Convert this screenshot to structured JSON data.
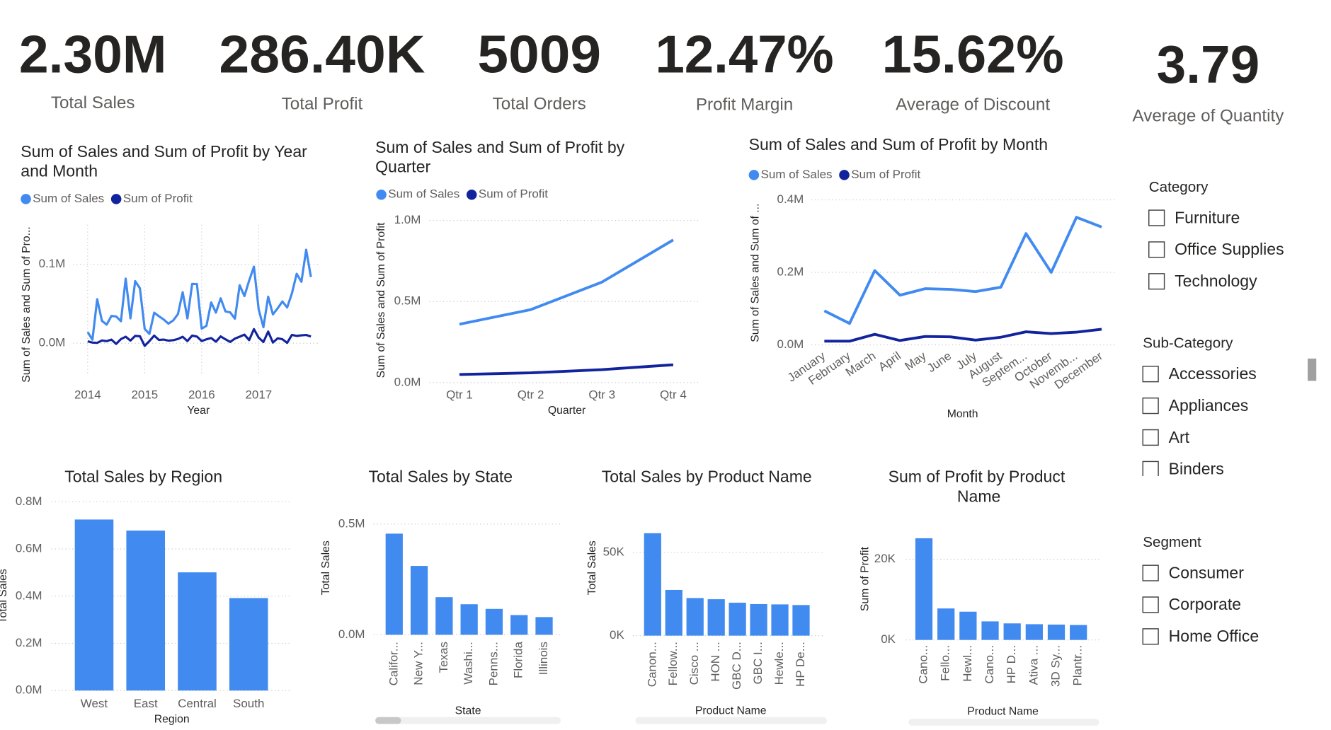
{
  "kpis": [
    {
      "value": "2.30M",
      "label": "Total Sales"
    },
    {
      "value": "286.40K",
      "label": "Total Profit"
    },
    {
      "value": "5009",
      "label": "Total Orders"
    },
    {
      "value": "12.47%",
      "label": "Profit  Margin"
    },
    {
      "value": "15.62%",
      "label": "Average of Discount"
    },
    {
      "value": "3.79",
      "label": "Average of Quantity"
    }
  ],
  "chart_data": [
    {
      "type": "line",
      "title": "Sum of Sales and Sum of Profit by Year and Month",
      "x_label": "Year",
      "y_label": "Sum of Sales and Sum of Pro...",
      "categories": [
        "2014",
        null,
        null,
        null,
        null,
        null,
        null,
        null,
        null,
        null,
        null,
        null,
        "2015",
        null,
        null,
        null,
        null,
        null,
        null,
        null,
        null,
        null,
        null,
        null,
        "2016",
        null,
        null,
        null,
        null,
        null,
        null,
        null,
        null,
        null,
        null,
        null,
        "2017",
        null,
        null,
        null,
        null,
        null,
        null,
        null,
        null,
        null,
        null,
        null
      ],
      "series": [
        {
          "name": "Sum of Sales",
          "color": "#418af0",
          "values": [
            0.0142,
            0.0045,
            0.0557,
            0.0283,
            0.0236,
            0.0346,
            0.0339,
            0.0279,
            0.0818,
            0.0315,
            0.0786,
            0.0695,
            0.0182,
            0.0119,
            0.0387,
            0.0342,
            0.0301,
            0.0248,
            0.0288,
            0.0369,
            0.0646,
            0.0314,
            0.0752,
            0.0749,
            0.0185,
            0.022,
            0.0517,
            0.0388,
            0.0569,
            0.0403,
            0.0391,
            0.0311,
            0.0734,
            0.0597,
            0.0794,
            0.0969,
            0.043,
            0.0203,
            0.0589,
            0.0365,
            0.0443,
            0.0529,
            0.0453,
            0.0631,
            0.0879,
            0.0778,
            0.1184,
            0.0838
          ]
        },
        {
          "name": "Sum of Profit",
          "color": "#12239e",
          "values": [
            0.0024,
            0.0009,
            0.0005,
            0.0035,
            0.0027,
            0.0046,
            -0.0008,
            0.0053,
            0.0083,
            0.0034,
            0.0093,
            0.0089,
            -0.0033,
            0.0028,
            0.0097,
            0.0042,
            0.0047,
            0.0033,
            0.0039,
            0.0054,
            0.0082,
            0.0028,
            0.0097,
            0.0085,
            0.0028,
            0.005,
            0.0066,
            0.002,
            0.0087,
            0.005,
            0.0017,
            0.0059,
            0.0083,
            0.0109,
            0.004,
            0.0179,
            0.0071,
            0.0016,
            0.0148,
            0.0009,
            0.0063,
            0.0051,
            0.0005,
            0.0106,
            0.0093,
            0.01,
            0.0105,
            0.0085
          ]
        }
      ],
      "ylim": [
        -0.04,
        0.15
      ],
      "yticks": [
        {
          "value": 0,
          "label": "0.0M"
        },
        {
          "value": 0.1,
          "label": "0.1M"
        }
      ],
      "grid": true,
      "xgrid": true
    },
    {
      "type": "line",
      "title": "Sum of Sales and Sum of Profit by Quarter",
      "x_label": "Quarter",
      "y_label": "Sum of Sales and Sum of Profit",
      "categories": [
        "Qtr 1",
        "Qtr 2",
        "Qtr 3",
        "Qtr 4"
      ],
      "series": [
        {
          "name": "Sum of Sales",
          "color": "#418af0",
          "values": [
            0.36,
            0.45,
            0.62,
            0.88
          ]
        },
        {
          "name": "Sum of Profit",
          "color": "#12239e",
          "values": [
            0.05,
            0.06,
            0.08,
            0.11
          ]
        }
      ],
      "ylim": [
        0,
        1.0
      ],
      "yticks": [
        {
          "value": 0,
          "label": "0.0M"
        },
        {
          "value": 0.5,
          "label": "0.5M"
        },
        {
          "value": 1.0,
          "label": "1.0M"
        }
      ],
      "grid": true
    },
    {
      "type": "line",
      "title": "Sum of Sales and Sum of Profit by Month",
      "x_label": "Month",
      "y_label": "Sum of Sales and Sum of ...",
      "categories": [
        "January",
        "February",
        "March",
        "April",
        "May",
        "June",
        "July",
        "August",
        "Septem...",
        "October",
        "Novemb...",
        "December"
      ],
      "series": [
        {
          "name": "Sum of Sales",
          "color": "#418af0",
          "values": [
            0.094,
            0.059,
            0.205,
            0.137,
            0.155,
            0.153,
            0.147,
            0.159,
            0.307,
            0.2,
            0.352,
            0.325
          ]
        },
        {
          "name": "Sum of Profit",
          "color": "#12239e",
          "values": [
            0.01,
            0.01,
            0.029,
            0.012,
            0.023,
            0.022,
            0.013,
            0.021,
            0.036,
            0.031,
            0.035,
            0.043
          ]
        }
      ],
      "ylim": [
        0,
        0.4
      ],
      "yticks": [
        {
          "value": 0,
          "label": "0.0M"
        },
        {
          "value": 0.2,
          "label": "0.2M"
        },
        {
          "value": 0.4,
          "label": "0.4M"
        }
      ],
      "grid": true
    },
    {
      "type": "bar",
      "title": "Total Sales by Region",
      "x_label": "Region",
      "y_label": "Total Sales",
      "categories": [
        "West",
        "East",
        "Central",
        "South"
      ],
      "values": [
        0.725,
        0.678,
        0.501,
        0.392
      ],
      "color": "#418af0",
      "ylim": [
        0,
        0.8
      ],
      "yticks": [
        {
          "value": 0,
          "label": "0.0M"
        },
        {
          "value": 0.2,
          "label": "0.2M"
        },
        {
          "value": 0.4,
          "label": "0.4M"
        },
        {
          "value": 0.6,
          "label": "0.6M"
        },
        {
          "value": 0.8,
          "label": "0.8M"
        }
      ],
      "grid": true
    },
    {
      "type": "bar",
      "title": "Total Sales by State",
      "x_label": "State",
      "y_label": "Total Sales",
      "categories": [
        "Califor...",
        "New Y...",
        "Texas",
        "Washi...",
        "Penns...",
        "Florida",
        "Illinois"
      ],
      "values": [
        0.457,
        0.311,
        0.17,
        0.138,
        0.117,
        0.089,
        0.08
      ],
      "color": "#418af0",
      "ylim": [
        0,
        0.5
      ],
      "yticks": [
        {
          "value": 0,
          "label": "0.0M"
        },
        {
          "value": 0.5,
          "label": "0.5M"
        }
      ],
      "grid": true
    },
    {
      "type": "bar",
      "title": "Total Sales by Product Name",
      "x_label": "Product Name",
      "y_label": "Total Sales",
      "categories": [
        "Canon...",
        "Fellow...",
        "Cisco ...",
        "HON ...",
        "GBC D...",
        "GBC I...",
        "Hewle...",
        "HP De..."
      ],
      "values": [
        61600,
        27500,
        22600,
        21900,
        19800,
        19000,
        18800,
        18400
      ],
      "color": "#418af0",
      "ylim": [
        0,
        65000
      ],
      "yticks": [
        {
          "value": 0,
          "label": "0K"
        },
        {
          "value": 50000,
          "label": "50K"
        }
      ],
      "grid": true
    },
    {
      "type": "bar",
      "title": "Sum of Profit by Product Name",
      "x_label": "Product Name",
      "y_label": "Sum of Profit",
      "categories": [
        "Cano...",
        "Fello...",
        "Hewl...",
        "Cano...",
        "HP D...",
        "Ativa ...",
        "3D Sy...",
        "Plantr..."
      ],
      "values": [
        25200,
        7800,
        7000,
        4600,
        4100,
        3900,
        3800,
        3700
      ],
      "color": "#418af0",
      "ylim": [
        0,
        27000
      ],
      "yticks": [
        {
          "value": 0,
          "label": "0K"
        },
        {
          "value": 20000,
          "label": "20K"
        }
      ],
      "grid": true
    }
  ],
  "slicers": [
    {
      "title": "Category",
      "items": [
        "Furniture",
        "Office Supplies",
        "Technology"
      ]
    },
    {
      "title": "Sub-Category",
      "items": [
        "Accessories",
        "Appliances",
        "Art",
        "Binders"
      ]
    },
    {
      "title": "Segment",
      "items": [
        "Consumer",
        "Corporate",
        "Home Office"
      ]
    }
  ]
}
